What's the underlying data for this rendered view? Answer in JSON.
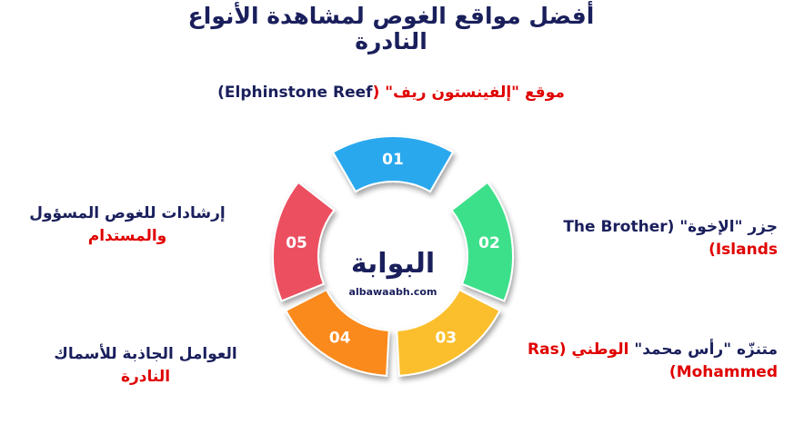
{
  "header": {
    "title_lines": [
      "أفضل مواقع الغوص لمشاهدة الأنواع",
      "النادرة"
    ]
  },
  "ring": {
    "segments": [
      "01",
      "02",
      "03",
      "04",
      "05"
    ]
  },
  "logo": {
    "name": "البوابة",
    "site": "albawaabh.com"
  },
  "items": [
    {
      "lines": [
        [
          {
            "text": "موقع \"إلفينستون ريف\" (",
            "color": "#e00000"
          },
          {
            "text": "Elphinstone Reef)",
            "color": "#1a1f5c"
          }
        ]
      ]
    },
    {
      "lines": [
        [
          {
            "text": "جزر \"الإخوة\" (",
            "color": "#1a1f5c"
          },
          {
            "text": "The Brother",
            "color": "#1a1f5c"
          }
        ],
        [
          {
            "text": "Islands)",
            "color": "#e00000"
          }
        ]
      ]
    },
    {
      "lines": [
        [
          {
            "text": "متنزّه \"رأس محمد\"",
            "color": "#1a1f5c"
          },
          {
            "text": " الوطني (",
            "color": "#e00000"
          },
          {
            "text": "Ras",
            "color": "#e00000"
          }
        ],
        [
          {
            "text": "Mohammed)",
            "color": "#e00000"
          }
        ]
      ]
    },
    {
      "lines": [
        [
          {
            "text": "العوامل الجاذبة للأسماك",
            "color": "#1a1f5c"
          }
        ],
        [
          {
            "text": "النادرة",
            "color": "#e00000"
          }
        ]
      ]
    },
    {
      "lines": [
        [
          {
            "text": "إرشادات للغوص المسؤول",
            "color": "#1a1f5c"
          }
        ],
        [
          {
            "text": "والمستدام",
            "color": "#e00000"
          }
        ]
      ]
    }
  ]
}
